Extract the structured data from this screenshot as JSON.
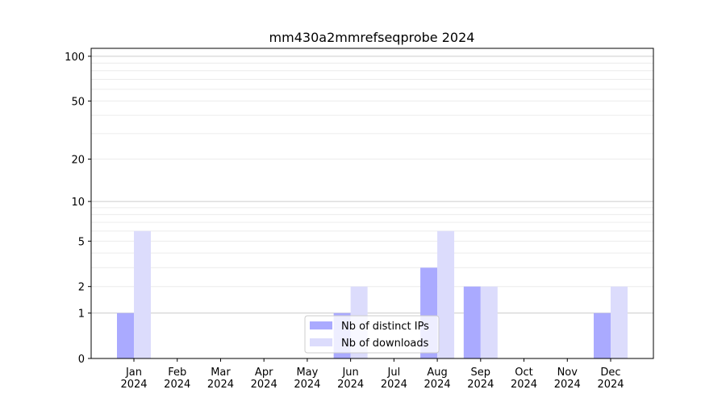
{
  "chart_data": {
    "type": "bar",
    "title": "mm430a2mmrefseqprobe 2024",
    "xlabel": "",
    "ylabel": "",
    "yscale": "log(1+y)",
    "ylim": [
      0,
      113
    ],
    "yticks": [
      0,
      1,
      2,
      5,
      10,
      20,
      50,
      100
    ],
    "grid": true,
    "legend_position": "bottom-center",
    "categories": [
      "Jan\n2024",
      "Feb\n2024",
      "Mar\n2024",
      "Apr\n2024",
      "May\n2024",
      "Jun\n2024",
      "Jul\n2024",
      "Aug\n2024",
      "Sep\n2024",
      "Oct\n2024",
      "Nov\n2024",
      "Dec\n2024"
    ],
    "series": [
      {
        "name": "Nb of distinct IPs",
        "color": "#aaaaff",
        "values": [
          1,
          0,
          0,
          0,
          0,
          1,
          0,
          3,
          2,
          0,
          0,
          1
        ]
      },
      {
        "name": "Nb of downloads",
        "color": "#dcdcfc",
        "values": [
          6,
          0,
          0,
          0,
          0,
          2,
          0,
          6,
          2,
          0,
          0,
          2
        ]
      }
    ]
  }
}
